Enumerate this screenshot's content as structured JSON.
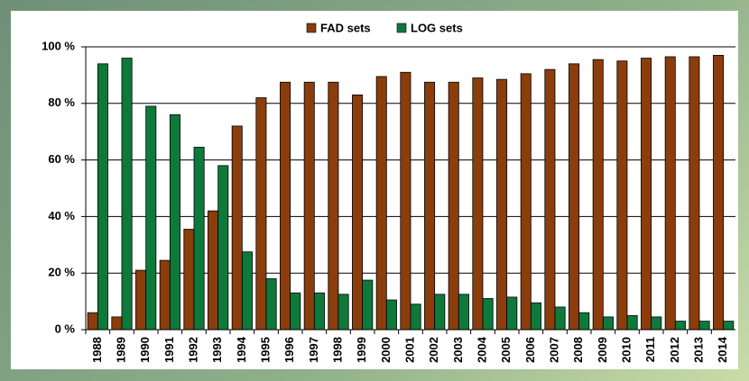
{
  "chart_data": {
    "type": "bar",
    "categories": [
      "1988",
      "1989",
      "1990",
      "1991",
      "1992",
      "1993",
      "1994",
      "1995",
      "1996",
      "1997",
      "1998",
      "1999",
      "2000",
      "2001",
      "2002",
      "2003",
      "2004",
      "2005",
      "2006",
      "2007",
      "2008",
      "2009",
      "2010",
      "2011",
      "2012",
      "2013",
      "2014"
    ],
    "series": [
      {
        "name": "FAD sets",
        "color": "#8b3d0c",
        "values": [
          6,
          4.5,
          21,
          24.5,
          35.5,
          42,
          72,
          82,
          87.5,
          87.5,
          87.5,
          83,
          89.5,
          91,
          87.5,
          87.5,
          89,
          88.5,
          90.5,
          92,
          94,
          95.5,
          95,
          96,
          96.5,
          96.5,
          97
        ]
      },
      {
        "name": "LOG sets",
        "color": "#0d7a3c",
        "values": [
          94,
          96,
          79,
          76,
          64.5,
          58,
          27.5,
          18,
          13,
          13,
          12.5,
          17.5,
          10.5,
          9,
          12.5,
          12.5,
          11,
          11.5,
          9.5,
          8,
          6,
          4.5,
          5,
          4.5,
          3,
          3,
          3
        ]
      }
    ],
    "ylim": [
      0,
      100
    ],
    "yticks": [
      {
        "value": 0,
        "label": "0 %"
      },
      {
        "value": 20,
        "label": "20 %"
      },
      {
        "value": 40,
        "label": "40 %"
      },
      {
        "value": 60,
        "label": "60 %"
      },
      {
        "value": 80,
        "label": "80 %"
      },
      {
        "value": 100,
        "label": "100 %"
      }
    ],
    "grid": true,
    "legend": "top"
  }
}
